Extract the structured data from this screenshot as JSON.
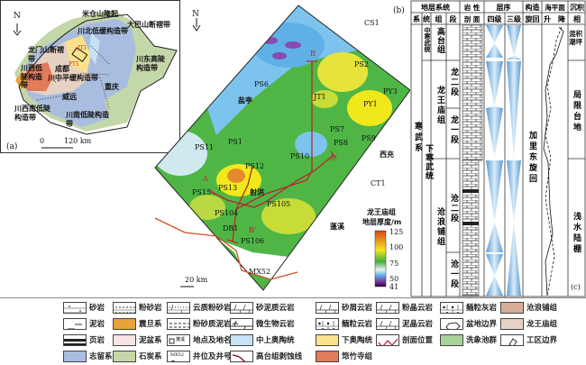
{
  "panel_a": {
    "label": "(a)",
    "north": "N",
    "scale": {
      "zero": "0",
      "value": "120 km"
    },
    "regions": [
      "米仓山隆起",
      "龙门山断褶带",
      "大巴山断褶带",
      "川北低缓构造带",
      "川西低陡构造带",
      "川中平缓构造带",
      "川东高陡构造带",
      "川西南低陡构造带",
      "川南低陡构造带"
    ],
    "cities": [
      "成都",
      "重庆",
      "威远"
    ],
    "markers": [
      "PT1",
      "JT1"
    ]
  },
  "panel_b": {
    "label": "(b)",
    "north": "N",
    "scale": "20 km",
    "wells": [
      "CS1",
      "PS2",
      "PY3",
      "PY1",
      "PS6",
      "JT1",
      "PS7",
      "PS8",
      "PS9",
      "PS11",
      "PS1",
      "PS10",
      "PS12",
      "PS13",
      "PS15",
      "PS105",
      "PS104",
      "DB1",
      "PS106",
      "MX52",
      "CT1"
    ],
    "places": [
      "盐亭",
      "西充",
      "射洪",
      "蓬溪"
    ],
    "profile_labels": [
      "B",
      "B'",
      "A",
      "A'"
    ],
    "colorbar": {
      "title1": "龙王庙组",
      "title2": "地层厚度/m",
      "ticks": [
        "125",
        "100",
        "75",
        "50",
        "41"
      ]
    },
    "colors": {
      "low": "#3a1050",
      "blue": "#5fb0e6",
      "green": "#3fae3a",
      "yellow": "#f1e81c",
      "high": "#d9441c"
    }
  },
  "panel_c": {
    "label": "(c)",
    "header_top": [
      "地层系统",
      "岩 性",
      "层序",
      "构造",
      "海平面",
      "沉积"
    ],
    "header_sub": [
      "系",
      "统",
      "组",
      "段",
      "剖 面",
      "四级",
      "三级",
      "旋回",
      "升",
      "降",
      "相"
    ],
    "system": "寒武系",
    "series": [
      "中寒武统",
      "下寒武统"
    ],
    "formations": [
      "高台组",
      "龙王庙组",
      "沧浪铺组"
    ],
    "members": [
      "龙二段",
      "龙一段",
      "沧二段",
      "沧一段"
    ],
    "cycle": "加里东旋回",
    "facies": [
      "混积潮坪",
      "局限台地",
      "浅水陆棚"
    ]
  },
  "legend": [
    {
      "label": "砂岩",
      "type": "sandstone"
    },
    {
      "label": "泥岩",
      "type": "mudstone"
    },
    {
      "label": "页岩",
      "type": "shale"
    },
    {
      "label": "志留系",
      "color": "#a9bde0"
    },
    {
      "label": "粉砂岩",
      "type": "siltstone"
    },
    {
      "label": "震旦系",
      "color": "#e8a23c"
    },
    {
      "label": "泥盆系",
      "color": "#fbe3e3"
    },
    {
      "label": "石炭系",
      "color": "#c4d7a8"
    },
    {
      "label": "云质粉砂岩",
      "type": "dolosilt"
    },
    {
      "label": "粉砂质泥岩",
      "type": "siltymud"
    },
    {
      "label": "地点及地名",
      "type": "place",
      "sample": "蓬溪"
    },
    {
      "label": "井位及井号",
      "type": "well",
      "sample": "MX52"
    },
    {
      "label": "砂泥质云岩",
      "type": "dolo"
    },
    {
      "label": "微生物云岩",
      "type": "microbial"
    },
    {
      "label": "中上奥陶统",
      "color": "#c6e2f4"
    },
    {
      "label": "高台组剥蚀线",
      "type": "erosion"
    },
    {
      "label": "砂屑云岩",
      "type": "dolo"
    },
    {
      "label": "鲕粒云岩",
      "type": "oolitic"
    },
    {
      "label": "下奥陶统",
      "color": "#fbe28a"
    },
    {
      "label": "筇竹寺组",
      "color": "#e27a5c"
    },
    {
      "label": "粉晶云岩",
      "type": "dolo"
    },
    {
      "label": "泥晶云岩",
      "type": "dolo"
    },
    {
      "label": "剖面位置",
      "type": "profile"
    },
    {
      "label": "鲕粒灰岩",
      "type": "oolitic"
    },
    {
      "label": "盆地边界",
      "type": "basin"
    },
    {
      "label": "洗象池群",
      "color": "#a8d49a"
    },
    {
      "label": "沧浪铺组",
      "color": "#d8ad98"
    },
    {
      "label": "龙王庙组",
      "color": "#e6d2c4"
    },
    {
      "label": "工区边界",
      "type": "area"
    }
  ]
}
